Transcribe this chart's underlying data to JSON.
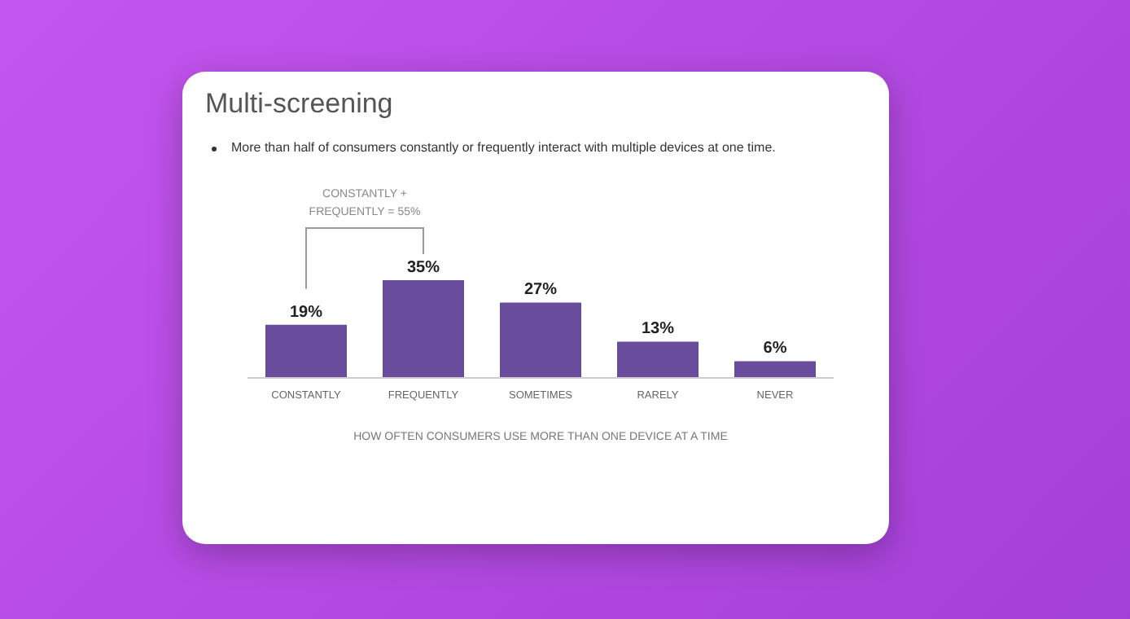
{
  "chart_data": {
    "type": "bar",
    "title": "Multi-screening",
    "subtitle": "More than half of consumers constantly or frequently interact with multiple devices at one time.",
    "xlabel": "HOW OFTEN CONSUMERS USE  MORE THAN ONE DEVICE AT A TIME",
    "categories": [
      "CONSTANTLY",
      "FREQUENTLY",
      "SOMETIMES",
      "RARELY",
      "NEVER"
    ],
    "values": [
      19,
      35,
      27,
      13,
      6
    ],
    "value_labels": [
      "19%",
      "35%",
      "27%",
      "13%",
      "6%"
    ],
    "color": "#6a4c9c",
    "annotations": [
      "CONSTANTLY +\nFREQUENTLY = 55%"
    ]
  }
}
